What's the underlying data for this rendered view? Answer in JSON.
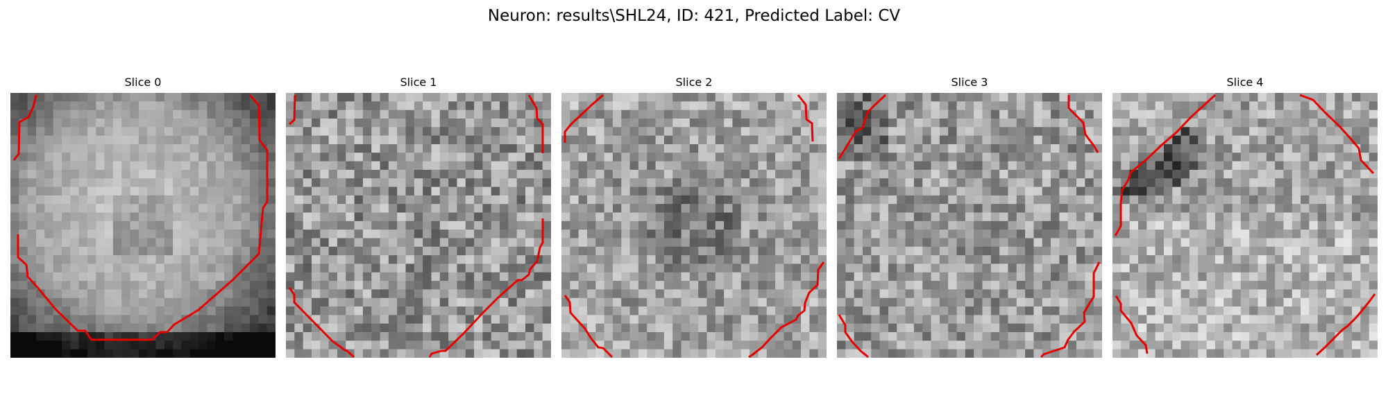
{
  "figure": {
    "title": "Neuron: results\\SHL24, ID: 421, Predicted Label: CV"
  },
  "panels": [
    {
      "title": "Slice 0",
      "image": "grayscale microscopy slice, bright roughly circular cell body filling most of the frame, darker rim at lower right",
      "contour": "red segmentation contour along left, right and bottom edges"
    },
    {
      "title": "Slice 1",
      "image": "grayscale noisy microscopy slice, uniform mid-gray texture",
      "contour": "red segmentation contour at top-left, top-right and bottom corners"
    },
    {
      "title": "Slice 2",
      "image": "grayscale noisy microscopy slice, darker center region",
      "contour": "red segmentation contour at top-left, top-right and bottom corners"
    },
    {
      "title": "Slice 3",
      "image": "grayscale noisy microscopy slice, dark patch at top-left",
      "contour": "red segmentation contour at top-left, top-right and bottom corners"
    },
    {
      "title": "Slice 4",
      "image": "grayscale noisy microscopy slice, dark diagonal band at top-left, brighter lower half",
      "contour": "red segmentation contour along left and at corners"
    }
  ],
  "style": {
    "contour_color": "#e60000"
  }
}
